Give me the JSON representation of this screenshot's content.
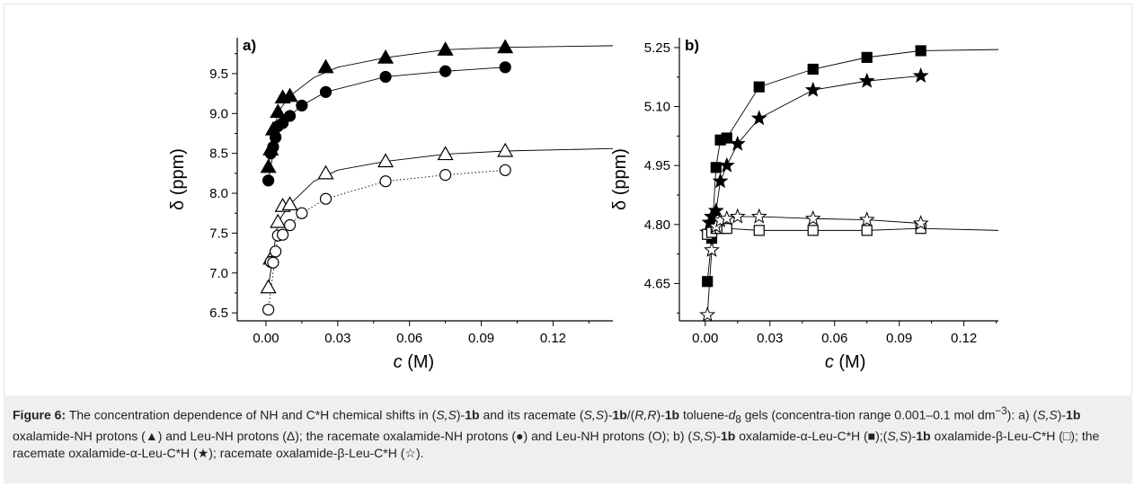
{
  "chart_data": [
    {
      "type": "scatter",
      "panel_label": "a)",
      "xlabel_italic": "c",
      "xlabel_unit": " (M)",
      "ylabel": "δ (ppm)",
      "xlim": [
        -0.012,
        0.145
      ],
      "ylim": [
        6.4,
        9.95
      ],
      "xticks": [
        0.0,
        0.03,
        0.06,
        0.09,
        0.12
      ],
      "xtick_labels": [
        "0.00",
        "0.03",
        "0.06",
        "0.09",
        "0.12"
      ],
      "yticks": [
        6.5,
        7.0,
        7.5,
        8.0,
        8.5,
        9.0,
        9.5
      ],
      "ytick_labels": [
        "6.5",
        "7.0",
        "7.5",
        "8.0",
        "8.5",
        "9.0",
        "9.5"
      ],
      "series": [
        {
          "marker": "triangle-filled",
          "line": "solid",
          "x": [
            0.001,
            0.002,
            0.003,
            0.005,
            0.007,
            0.01,
            0.025,
            0.05,
            0.075,
            0.1
          ],
          "y": [
            8.33,
            8.55,
            8.8,
            9.02,
            9.2,
            9.22,
            9.58,
            9.7,
            9.8,
            9.83
          ],
          "fit_x": [
            0.001,
            0.005,
            0.01,
            0.02,
            0.03,
            0.05,
            0.075,
            0.1,
            0.145
          ],
          "fit_y": [
            8.33,
            9.02,
            9.22,
            9.45,
            9.58,
            9.7,
            9.8,
            9.83,
            9.85
          ]
        },
        {
          "marker": "circle-filled",
          "line": "solid",
          "x": [
            0.001,
            0.002,
            0.003,
            0.004,
            0.005,
            0.007,
            0.01,
            0.015,
            0.025,
            0.05,
            0.075,
            0.1
          ],
          "y": [
            8.16,
            8.5,
            8.58,
            8.7,
            8.84,
            8.88,
            8.97,
            9.1,
            9.27,
            9.46,
            9.53,
            9.58
          ],
          "fit_x": [
            0.001,
            0.005,
            0.01,
            0.015,
            0.025,
            0.05,
            0.075,
            0.1
          ],
          "fit_y": [
            8.16,
            8.84,
            8.97,
            9.1,
            9.27,
            9.46,
            9.53,
            9.58
          ]
        },
        {
          "marker": "triangle-open",
          "line": "solid",
          "x": [
            0.001,
            0.002,
            0.005,
            0.007,
            0.01,
            0.025,
            0.05,
            0.075,
            0.1
          ],
          "y": [
            6.82,
            7.18,
            7.64,
            7.84,
            7.86,
            8.25,
            8.4,
            8.49,
            8.53
          ],
          "fit_x": [
            0.001,
            0.005,
            0.01,
            0.02,
            0.03,
            0.05,
            0.075,
            0.1,
            0.145
          ],
          "fit_y": [
            6.82,
            7.64,
            7.86,
            8.15,
            8.29,
            8.4,
            8.49,
            8.53,
            8.56
          ]
        },
        {
          "marker": "circle-open",
          "line": "dotted",
          "x": [
            0.001,
            0.002,
            0.003,
            0.004,
            0.005,
            0.007,
            0.01,
            0.015,
            0.025,
            0.05,
            0.075,
            0.1
          ],
          "y": [
            6.54,
            7.14,
            7.13,
            7.27,
            7.47,
            7.48,
            7.6,
            7.75,
            7.93,
            8.15,
            8.23,
            8.29
          ],
          "fit_x": [
            0.001,
            0.005,
            0.01,
            0.015,
            0.025,
            0.05,
            0.075,
            0.1
          ],
          "fit_y": [
            6.54,
            7.47,
            7.6,
            7.75,
            7.93,
            8.15,
            8.23,
            8.29
          ]
        }
      ]
    },
    {
      "type": "scatter",
      "panel_label": "b)",
      "xlabel_italic": "c",
      "xlabel_unit": " (M)",
      "ylabel": "δ (ppm)",
      "xlim": [
        -0.012,
        0.136
      ],
      "ylim": [
        4.555,
        5.275
      ],
      "xticks": [
        0.0,
        0.03,
        0.06,
        0.09,
        0.12
      ],
      "xtick_labels": [
        "0.00",
        "0.03",
        "0.06",
        "0.09",
        "0.12"
      ],
      "yticks": [
        4.65,
        4.8,
        4.95,
        5.1,
        5.25
      ],
      "ytick_labels": [
        "4.65",
        "4.80",
        "4.95",
        "5.10",
        "5.25"
      ],
      "series": [
        {
          "marker": "square-filled",
          "line": "solid",
          "x": [
            0.001,
            0.003,
            0.005,
            0.007,
            0.01,
            0.025,
            0.05,
            0.075,
            0.1
          ],
          "y": [
            4.655,
            4.765,
            4.945,
            5.015,
            5.02,
            5.15,
            5.195,
            5.225,
            5.242
          ],
          "fit_x": [
            0.001,
            0.003,
            0.005,
            0.007,
            0.01,
            0.025,
            0.05,
            0.075,
            0.1,
            0.136
          ],
          "fit_y": [
            4.655,
            4.765,
            4.945,
            5.015,
            5.02,
            5.15,
            5.195,
            5.225,
            5.242,
            5.245
          ]
        },
        {
          "marker": "star-filled",
          "line": "solid",
          "x": [
            0.001,
            0.002,
            0.003,
            0.005,
            0.007,
            0.01,
            0.015,
            0.025,
            0.05,
            0.075,
            0.1
          ],
          "y": [
            4.78,
            4.805,
            4.82,
            4.835,
            4.91,
            4.95,
            5.005,
            5.07,
            5.142,
            5.165,
            5.178
          ],
          "fit_x": [
            0.001,
            0.003,
            0.005,
            0.007,
            0.01,
            0.015,
            0.025,
            0.05,
            0.075,
            0.1
          ],
          "fit_y": [
            4.78,
            4.82,
            4.835,
            4.91,
            4.95,
            5.005,
            5.07,
            5.142,
            5.165,
            5.178
          ]
        },
        {
          "marker": "square-open",
          "line": "solid",
          "x": [
            0.001,
            0.003,
            0.005,
            0.007,
            0.01,
            0.025,
            0.05,
            0.075,
            0.1
          ],
          "y": [
            4.775,
            4.78,
            4.79,
            4.79,
            4.79,
            4.785,
            4.785,
            4.785,
            4.79
          ],
          "fit_x": [
            0.001,
            0.005,
            0.01,
            0.025,
            0.05,
            0.075,
            0.1,
            0.136
          ],
          "fit_y": [
            4.775,
            4.79,
            4.79,
            4.785,
            4.785,
            4.785,
            4.79,
            4.785
          ]
        },
        {
          "marker": "star-open",
          "line": "solid",
          "x": [
            0.001,
            0.003,
            0.005,
            0.007,
            0.01,
            0.015,
            0.025,
            0.05,
            0.075,
            0.1
          ],
          "y": [
            4.57,
            4.735,
            4.795,
            4.81,
            4.815,
            4.82,
            4.82,
            4.815,
            4.812,
            4.803
          ],
          "fit_x": [
            0.001,
            0.003,
            0.005,
            0.007,
            0.01,
            0.015,
            0.025,
            0.05,
            0.075,
            0.1
          ],
          "fit_y": [
            4.57,
            4.735,
            4.795,
            4.81,
            4.815,
            4.82,
            4.82,
            4.815,
            4.812,
            4.803
          ]
        }
      ]
    }
  ],
  "caption": {
    "figure_label": "Figure 6:",
    "p1": " The concentration dependence of NH and C*H chemical shifts in (",
    "p1i": "S,S",
    "p1b": ")-",
    "p1c": "1b",
    "p2": " and its racemate (",
    "p2i": "S,S",
    "p2b": ")-",
    "p2c": "1b",
    "p2d": "/(",
    "p2e": "R,R",
    "p2f": ")-",
    "p2g": "1b",
    "p3": " toluene-",
    "p3i": "d",
    "p3sub": "8",
    "p4": " gels (concentra-tion range 0.001–0.1 mol dm",
    "p4sup": "−3",
    "p5": "): a) (",
    "p5i": "S,S",
    "p5b": ")-",
    "p5c": "1b",
    "p6": " oxalamide-NH protons (▲) and Leu-NH protons (Δ); the racemate oxalamide-NH protons (●) and Leu-NH protons (O); b) (",
    "p6i": "S,S",
    "p6b": ")-",
    "p6c": "1b",
    "p7": " oxalamide-α-Leu-C*H (■);(",
    "p7i": "S,S",
    "p7b": ")-",
    "p7c": "1b",
    "p8": " oxalamide-β-Leu-C*H (□); the racemate oxalamide-α-Leu-C*H (★); racemate oxalamide-β-Leu-C*H (☆)."
  }
}
